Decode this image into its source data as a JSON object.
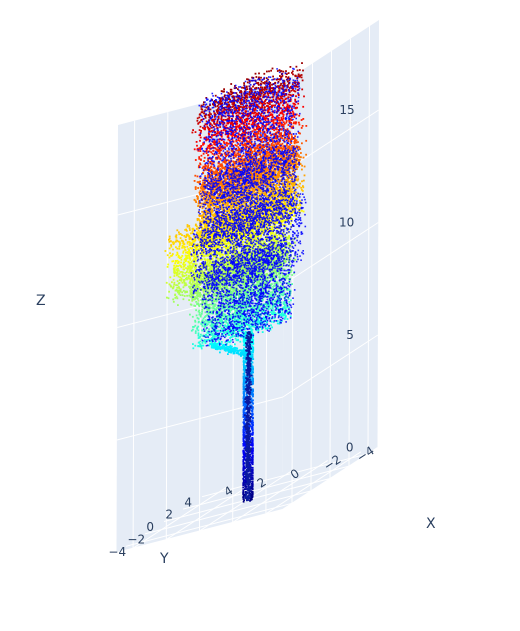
{
  "chart_data": {
    "type": "scatter",
    "subtype": "3d point cloud (tree)",
    "title": "",
    "axes": {
      "x": {
        "label": "X",
        "ticks": [
          "−4",
          "−2",
          "0",
          "2",
          "4"
        ],
        "range": [
          -5,
          5
        ]
      },
      "y": {
        "label": "Y",
        "ticks": [
          "−4",
          "−2",
          "0",
          "2",
          "4"
        ],
        "range": [
          -5,
          5
        ]
      },
      "z": {
        "label": "Z",
        "ticks": [
          "0",
          "5",
          "10",
          "15"
        ],
        "range": [
          0,
          19
        ]
      }
    },
    "grid": true,
    "legend": "none",
    "colorscale": "jet",
    "colors": {
      "pane": "#e5ecf6",
      "gridline": "#ffffff",
      "text": "#2a3f5f",
      "overlay": "#0000ff"
    },
    "structure": {
      "trunk": {
        "x": 0,
        "y": 0,
        "z_range": [
          0,
          7.5
        ],
        "radius": 0.25
      },
      "crown_layers": [
        {
          "z_range": [
            7.5,
            11
          ],
          "spread": 2.6,
          "color_band": "cyan-blue"
        },
        {
          "z_range": [
            10,
            13
          ],
          "spread": 3.2,
          "color_band": "yellow-green"
        },
        {
          "z_range": [
            12,
            15
          ],
          "spread": 2.8,
          "color_band": "orange"
        },
        {
          "z_range": [
            14,
            18.5
          ],
          "spread": 2.8,
          "color_band": "red"
        }
      ],
      "blue_overlay": true
    }
  }
}
